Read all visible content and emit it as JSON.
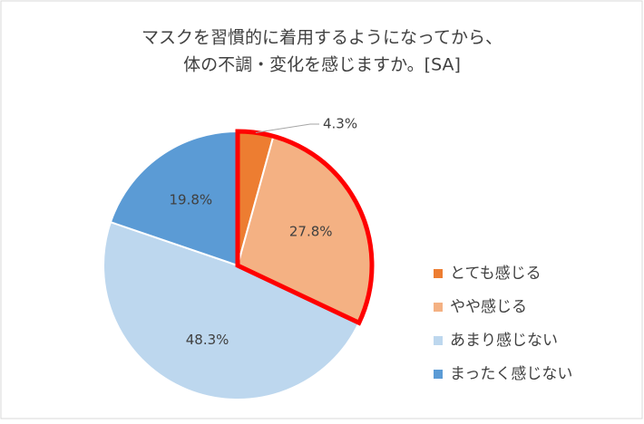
{
  "chart_data": {
    "type": "pie",
    "title": [
      "マスクを習慣的に着用するようになってから、",
      "体の不調・変化を感じますか。[SA]"
    ],
    "categories": [
      "とても感じる",
      "やや感じる",
      "あまり感じない",
      "まったく感じない"
    ],
    "values": [
      4.3,
      27.8,
      48.3,
      19.8
    ],
    "value_labels": [
      "4.3%",
      "27.8%",
      "48.3%",
      "19.8%"
    ],
    "colors": [
      "#ed7d31",
      "#f4b183",
      "#bdd7ee",
      "#5b9bd5"
    ],
    "legend": "right"
  }
}
